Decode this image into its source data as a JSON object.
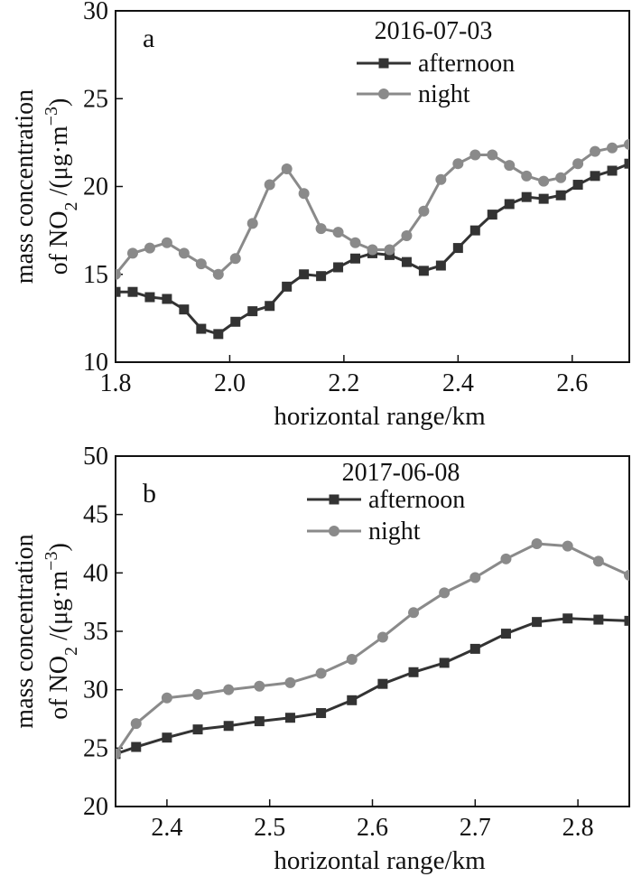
{
  "chart_data": [
    {
      "type": "line",
      "panel_label": "a",
      "date": "2016-07-03",
      "xlabel": "horizontal range/km",
      "ylabel_line1": "mass concentration",
      "ylabel_line2": {
        "prefix": "of NO",
        "sub": "2",
        "mid": " /(μg·m",
        "sup": "−3",
        "suffix": ")"
      },
      "xlim": [
        1.8,
        2.7
      ],
      "ylim": [
        10,
        30
      ],
      "xticks": [
        "1.8",
        "2.0",
        "2.2",
        "2.4",
        "2.6"
      ],
      "xtick_values": [
        1.8,
        2.0,
        2.2,
        2.4,
        2.6
      ],
      "yticks": [
        "10",
        "15",
        "20",
        "25",
        "30"
      ],
      "ytick_values": [
        10,
        15,
        20,
        25,
        30
      ],
      "legend_placement": "top-right",
      "series": [
        {
          "name": "afternoon",
          "marker": "square",
          "color": "#333333",
          "x": [
            1.8,
            1.83,
            1.86,
            1.89,
            1.92,
            1.95,
            1.98,
            2.01,
            2.04,
            2.07,
            2.1,
            2.13,
            2.16,
            2.19,
            2.22,
            2.25,
            2.28,
            2.31,
            2.34,
            2.37,
            2.4,
            2.43,
            2.46,
            2.49,
            2.52,
            2.55,
            2.58,
            2.61,
            2.64,
            2.67,
            2.7
          ],
          "values": [
            14.0,
            14.0,
            13.7,
            13.6,
            13.0,
            11.9,
            11.6,
            12.3,
            12.9,
            13.2,
            14.3,
            15.0,
            14.9,
            15.4,
            15.9,
            16.2,
            16.1,
            15.7,
            15.2,
            15.5,
            16.5,
            17.5,
            18.4,
            19.0,
            19.4,
            19.3,
            19.5,
            20.1,
            20.6,
            20.9,
            21.3
          ]
        },
        {
          "name": "night",
          "marker": "circle",
          "color": "#8a8a8a",
          "x": [
            1.8,
            1.83,
            1.86,
            1.89,
            1.92,
            1.95,
            1.98,
            2.01,
            2.04,
            2.07,
            2.1,
            2.13,
            2.16,
            2.19,
            2.22,
            2.25,
            2.28,
            2.31,
            2.34,
            2.37,
            2.4,
            2.43,
            2.46,
            2.49,
            2.52,
            2.55,
            2.58,
            2.61,
            2.64,
            2.67,
            2.7
          ],
          "values": [
            15.0,
            16.2,
            16.5,
            16.8,
            16.2,
            15.6,
            15.0,
            15.9,
            17.9,
            20.1,
            21.0,
            19.6,
            17.6,
            17.4,
            16.8,
            16.4,
            16.4,
            17.2,
            18.6,
            20.4,
            21.3,
            21.8,
            21.8,
            21.2,
            20.6,
            20.3,
            20.5,
            21.3,
            22.0,
            22.2,
            22.4
          ]
        }
      ]
    },
    {
      "type": "line",
      "panel_label": "b",
      "date": "2017-06-08",
      "xlabel": "horizontal range/km",
      "ylabel_line1": "mass concentration",
      "ylabel_line2": {
        "prefix": "of NO",
        "sub": "2",
        "mid": " /(μg·m",
        "sup": "−3",
        "suffix": ")"
      },
      "xlim": [
        2.35,
        2.85
      ],
      "ylim": [
        20,
        50
      ],
      "xticks": [
        "2.4",
        "2.5",
        "2.6",
        "2.7",
        "2.8"
      ],
      "xtick_values": [
        2.4,
        2.5,
        2.6,
        2.7,
        2.8
      ],
      "yticks": [
        "20",
        "25",
        "30",
        "35",
        "40",
        "45",
        "50"
      ],
      "ytick_values": [
        20,
        25,
        30,
        35,
        40,
        45,
        50
      ],
      "legend_placement": "top-center",
      "series": [
        {
          "name": "afternoon",
          "marker": "square",
          "color": "#333333",
          "x": [
            2.35,
            2.37,
            2.4,
            2.43,
            2.46,
            2.49,
            2.52,
            2.55,
            2.58,
            2.61,
            2.64,
            2.67,
            2.7,
            2.73,
            2.76,
            2.79,
            2.82,
            2.85
          ],
          "values": [
            24.5,
            25.1,
            25.9,
            26.6,
            26.9,
            27.3,
            27.6,
            28.0,
            29.1,
            30.5,
            31.5,
            32.3,
            33.5,
            34.8,
            35.8,
            36.1,
            36.0,
            35.9
          ]
        },
        {
          "name": "night",
          "marker": "circle",
          "color": "#8a8a8a",
          "x": [
            2.35,
            2.37,
            2.4,
            2.43,
            2.46,
            2.49,
            2.52,
            2.55,
            2.58,
            2.61,
            2.64,
            2.67,
            2.7,
            2.73,
            2.76,
            2.79,
            2.82,
            2.85
          ],
          "values": [
            24.5,
            27.1,
            29.3,
            29.6,
            30.0,
            30.3,
            30.6,
            31.4,
            32.6,
            34.5,
            36.6,
            38.3,
            39.6,
            41.2,
            42.5,
            42.3,
            41.0,
            39.8
          ]
        }
      ]
    }
  ]
}
